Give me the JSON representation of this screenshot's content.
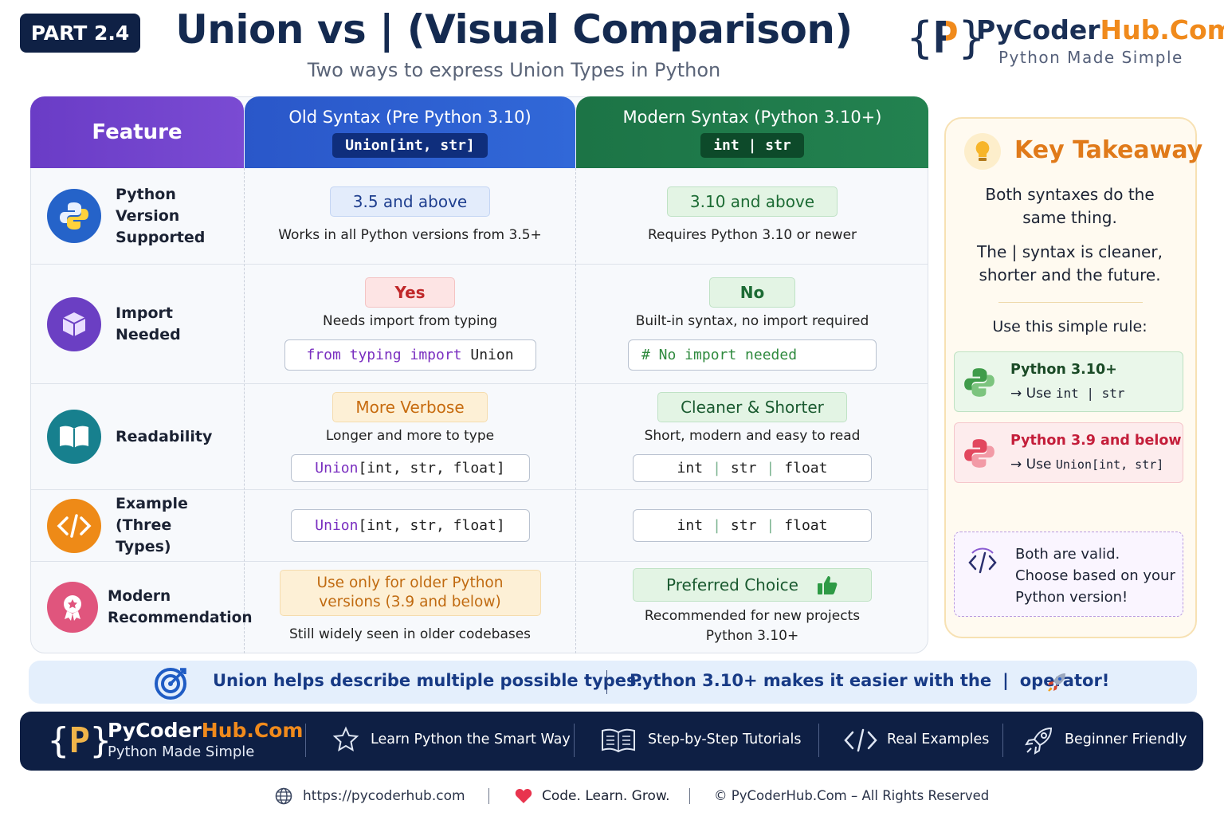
{
  "header": {
    "badge": "PART 2.4",
    "title": "Union vs | (Visual Comparison)",
    "subtitle": "Two ways to express Union Types in Python"
  },
  "brand": {
    "logo": {
      "open": "{",
      "letter": "P",
      "close": "}"
    },
    "name": "PyCoder",
    "name_accent": "Hub.Com",
    "tagline": "Python Made Simple"
  },
  "table": {
    "columns": [
      {
        "title": "Feature"
      },
      {
        "title": "Old Syntax (Pre Python 3.10)",
        "code": "Union[int, str]"
      },
      {
        "title": "Modern Syntax (Python 3.10+)",
        "code": "int | str"
      }
    ],
    "rows": [
      {
        "feature": "Python Version Supported",
        "old": {
          "badge": "3.5 and above",
          "note": "Works in all Python versions from 3.5+"
        },
        "new": {
          "badge": "3.10 and above",
          "note": "Requires Python 3.10 or newer"
        }
      },
      {
        "feature": "Import Needed",
        "old": {
          "badge": "Yes",
          "note": "Needs import from typing",
          "code": [
            "from typing import",
            "Union"
          ]
        },
        "new": {
          "badge": "No",
          "note": "Built-in syntax, no import required",
          "code": [
            "# No import needed"
          ]
        }
      },
      {
        "feature": "Readability",
        "old": {
          "badge": "More Verbose",
          "note": "Longer and more to type",
          "code": [
            "Union",
            "[int, str, float]"
          ]
        },
        "new": {
          "badge": "Cleaner & Shorter",
          "note": "Short, modern and easy to read",
          "code": [
            "int",
            "|",
            "str",
            "|",
            "float"
          ]
        }
      },
      {
        "feature": "Example (Three Types)",
        "old": {
          "code": [
            "Union",
            "[int, str, float]"
          ]
        },
        "new": {
          "code": [
            "int",
            "|",
            "str",
            "|",
            "float"
          ]
        }
      },
      {
        "feature": "Modern Recommendation",
        "old": {
          "badge": "Use only for older Python versions (3.9 and below)",
          "note": "Still widely seen in older codebases"
        },
        "new": {
          "badge": "Preferred Choice",
          "note": "Recommended for new projects Python 3.10+"
        }
      }
    ]
  },
  "takeaway": {
    "title": "Key Takeaway",
    "points": [
      "Both syntaxes do the same thing.",
      "The | syntax is cleaner, shorter and the future."
    ],
    "rule_intro": "Use this simple rule:",
    "rules": [
      {
        "version": "Python 3.10+",
        "action": "→ Use",
        "code": "int | str"
      },
      {
        "version": "Python 3.9 and below",
        "action": "→ Use",
        "code": "Union[int, str]"
      }
    ],
    "note": [
      "Both are valid.",
      "Choose based on your",
      "Python version!"
    ]
  },
  "banner": {
    "left": "Union helps describe multiple possible types.",
    "right": "Python 3.10+ makes it easier with the",
    "operator": "|",
    "end": "operator!"
  },
  "footer": {
    "features": [
      "Learn Python the Smart Way",
      "Step-by-Step Tutorials",
      "Real Examples",
      "Beginner Friendly"
    ]
  },
  "bottom": {
    "url": "https://pycoderhub.com",
    "motto": "Code. Learn. Grow.",
    "copyright": "© PyCoderHub.Com – All Rights Reserved"
  }
}
